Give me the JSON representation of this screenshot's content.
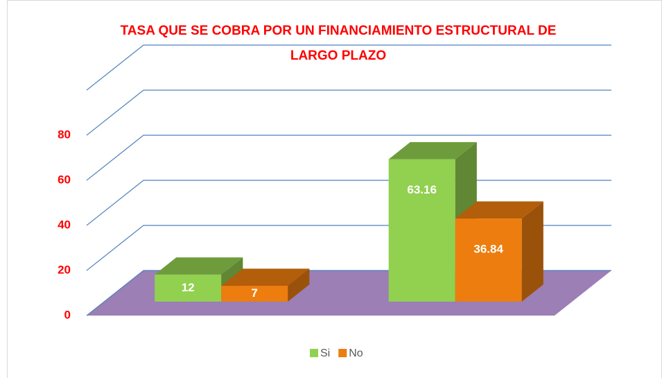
{
  "chart_data": {
    "type": "bar3d",
    "title": "TASA QUE SE COBRA POR UN FINANCIAMIENTO ESTRUCTURAL DE LARGO PLAZO",
    "categories": [
      null,
      null
    ],
    "series": [
      {
        "name": "Si",
        "color": "#92d050",
        "values": [
          12,
          63.16
        ]
      },
      {
        "name": "No",
        "color": "#ed7d0e",
        "values": [
          7,
          36.84
        ]
      }
    ],
    "ylim": [
      0,
      100
    ],
    "yticks": [
      0,
      20,
      40,
      60,
      80
    ],
    "grid": true,
    "legend": "bottom"
  }
}
